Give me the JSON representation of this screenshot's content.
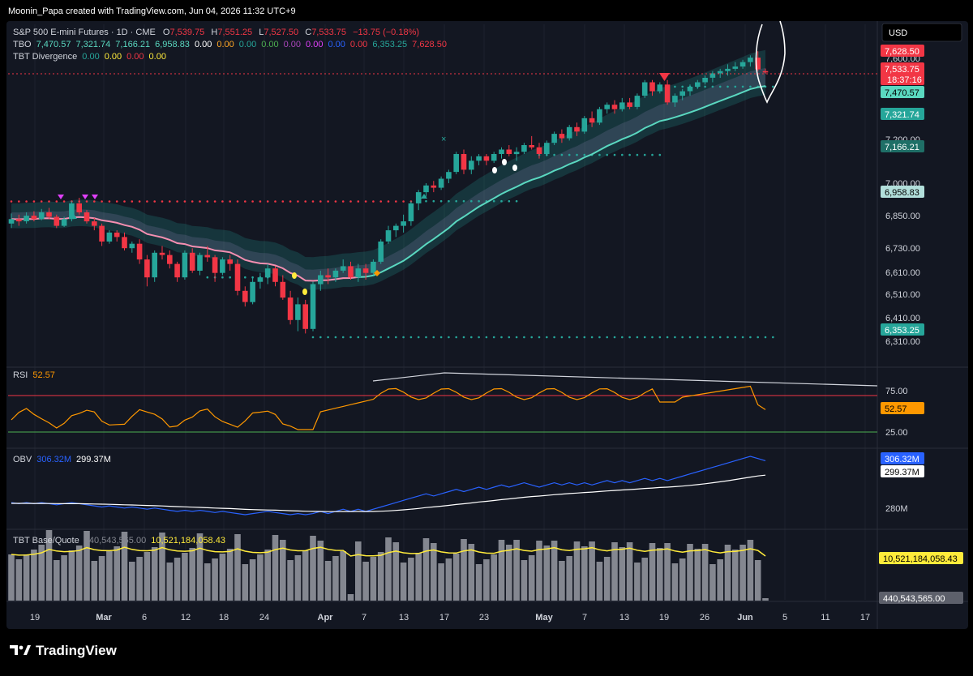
{
  "header": {
    "credit": "Moonin_Papa created with TradingView.com, Jun 04, 2026 11:32 UTC+9",
    "symbol": "S&P 500 E-mini Futures · 1D · CME",
    "ohlc": [
      {
        "k": "O",
        "v": "7,539.75"
      },
      {
        "k": "H",
        "v": "7,551.25"
      },
      {
        "k": "L",
        "v": "7,527.50"
      },
      {
        "k": "C",
        "v": "7,533.75"
      }
    ],
    "change": "−13.75 (−0.18%)",
    "tbo_name": "TBO",
    "tbo_values": [
      {
        "v": "7,470.57",
        "c": "#5ad8c0"
      },
      {
        "v": "7,321.74",
        "c": "#5ad8c0"
      },
      {
        "v": "7,166.21",
        "c": "#5ad8c0"
      },
      {
        "v": "6,958.83",
        "c": "#5ad8c0"
      },
      {
        "v": "0.00",
        "c": "#ffffff"
      },
      {
        "v": "0.00",
        "c": "#ffa726"
      },
      {
        "v": "0.00",
        "c": "#26a69a"
      },
      {
        "v": "0.00",
        "c": "#4caf50"
      },
      {
        "v": "0.00",
        "c": "#ab47bc"
      },
      {
        "v": "0.00",
        "c": "#e040fb"
      },
      {
        "v": "0.00",
        "c": "#2962ff"
      },
      {
        "v": "0.00",
        "c": "#f23645"
      },
      {
        "v": "6,353.25",
        "c": "#26a69a"
      },
      {
        "v": "7,628.50",
        "c": "#f23645"
      }
    ],
    "div_name": "TBT Divergence",
    "div_values": [
      {
        "v": "0.00",
        "c": "#26a69a"
      },
      {
        "v": "0.00",
        "c": "#ffeb3b"
      },
      {
        "v": "0.00",
        "c": "#f23645"
      },
      {
        "v": "0.00",
        "c": "#ffeb3b"
      }
    ],
    "currency": "USD"
  },
  "panels": {
    "rsi": {
      "name": "RSI",
      "value": "52.57"
    },
    "obv": {
      "name": "OBV",
      "v1": "306.32M",
      "v2": "299.37M"
    },
    "tbt": {
      "name": "TBT Base/Quote",
      "v1": "440,543,565.00",
      "v2": "10,521,184,058.43"
    }
  },
  "price_scale": {
    "ticks": [
      "7,200.00",
      "7,000.00",
      "6,850.00",
      "6,730.00",
      "6,610.00",
      "6,510.00",
      "6,410.00",
      "6,310.00"
    ],
    "top_tick": "7,600.00"
  },
  "price_labels": [
    {
      "text": "7,628.50",
      "bg": "#f23645",
      "fg": "#ffffff"
    },
    {
      "text": "7,533.75",
      "bg": "#f23645",
      "fg": "#ffffff",
      "sub": "18:37:16"
    },
    {
      "text": "7,470.57",
      "bg": "#5ad8c0",
      "fg": "#000000"
    },
    {
      "text": "7,321.74",
      "bg": "#26a69a",
      "fg": "#ffffff"
    },
    {
      "text": "7,166.21",
      "bg": "#1f6f67",
      "fg": "#ffffff"
    },
    {
      "text": "6,958.83",
      "bg": "#b2dfdb",
      "fg": "#000000"
    },
    {
      "text": "6,353.25",
      "bg": "#26a69a",
      "fg": "#ffffff"
    }
  ],
  "rsi_scale": {
    "upper": "75.00",
    "lower": "25.00",
    "label": "52.57"
  },
  "obv_scale": {
    "tick": "280M",
    "l1": "306.32M",
    "l2": "299.37M"
  },
  "tbt_scale": {
    "l1": "10,521,184,058.43",
    "l2": "440,543,565.00"
  },
  "x_axis": {
    "labels": [
      {
        "t": "19",
        "x": 43,
        "b": false
      },
      {
        "t": "Mar",
        "x": 128,
        "b": true
      },
      {
        "t": "6",
        "x": 178,
        "b": false
      },
      {
        "t": "12",
        "x": 229,
        "b": false
      },
      {
        "t": "18",
        "x": 276,
        "b": false
      },
      {
        "t": "24",
        "x": 326,
        "b": false
      },
      {
        "t": "Apr",
        "x": 401,
        "b": true
      },
      {
        "t": "7",
        "x": 449,
        "b": false
      },
      {
        "t": "13",
        "x": 498,
        "b": false
      },
      {
        "t": "17",
        "x": 548,
        "b": false
      },
      {
        "t": "23",
        "x": 597,
        "b": false
      },
      {
        "t": "May",
        "x": 671,
        "b": true
      },
      {
        "t": "7",
        "x": 721,
        "b": false
      },
      {
        "t": "13",
        "x": 770,
        "b": false
      },
      {
        "t": "19",
        "x": 819,
        "b": false
      },
      {
        "t": "26",
        "x": 869,
        "b": false
      },
      {
        "t": "Jun",
        "x": 919,
        "b": true
      },
      {
        "t": "5",
        "x": 968,
        "b": false
      },
      {
        "t": "11",
        "x": 1018,
        "b": false
      },
      {
        "t": "17",
        "x": 1067,
        "b": false
      }
    ]
  },
  "footer": {
    "brand": "TradingView"
  },
  "colors": {
    "up": "#26a69a",
    "down": "#f23645",
    "bg": "#000000",
    "pane": "#131722",
    "grid": "#1e222d",
    "text": "#d1d4dc",
    "rsi": "#ff9800",
    "obv": "#2962ff",
    "vol": "#848790",
    "volma": "#ffeb3b",
    "ema": "#5ad8c0",
    "pink": "#f48fb1"
  },
  "chart_data": {
    "type": "candlestick",
    "title": "S&P 500 E-mini Futures · 1D · CME",
    "x_start": "2026-02-16",
    "ohlc": [
      [
        6860,
        6905,
        6840,
        6880
      ],
      [
        6880,
        6900,
        6850,
        6870
      ],
      [
        6870,
        6910,
        6860,
        6895
      ],
      [
        6895,
        6915,
        6870,
        6880
      ],
      [
        6880,
        6925,
        6875,
        6910
      ],
      [
        6910,
        6930,
        6880,
        6890
      ],
      [
        6890,
        6900,
        6840,
        6850
      ],
      [
        6850,
        6890,
        6845,
        6880
      ],
      [
        6880,
        6960,
        6870,
        6950
      ],
      [
        6950,
        6975,
        6900,
        6910
      ],
      [
        6910,
        6920,
        6860,
        6870
      ],
      [
        6870,
        6885,
        6830,
        6850
      ],
      [
        6850,
        6860,
        6760,
        6780
      ],
      [
        6780,
        6830,
        6770,
        6820
      ],
      [
        6820,
        6830,
        6780,
        6800
      ],
      [
        6800,
        6820,
        6740,
        6750
      ],
      [
        6750,
        6780,
        6730,
        6770
      ],
      [
        6770,
        6790,
        6680,
        6700
      ],
      [
        6700,
        6720,
        6580,
        6620
      ],
      [
        6620,
        6740,
        6600,
        6730
      ],
      [
        6730,
        6760,
        6700,
        6720
      ],
      [
        6720,
        6740,
        6660,
        6680
      ],
      [
        6680,
        6690,
        6600,
        6620
      ],
      [
        6620,
        6740,
        6610,
        6730
      ],
      [
        6730,
        6750,
        6640,
        6650
      ],
      [
        6650,
        6730,
        6630,
        6720
      ],
      [
        6720,
        6760,
        6690,
        6710
      ],
      [
        6710,
        6720,
        6600,
        6640
      ],
      [
        6640,
        6710,
        6630,
        6700
      ],
      [
        6700,
        6720,
        6650,
        6680
      ],
      [
        6680,
        6700,
        6540,
        6560
      ],
      [
        6560,
        6580,
        6490,
        6510
      ],
      [
        6510,
        6620,
        6500,
        6600
      ],
      [
        6600,
        6640,
        6570,
        6620
      ],
      [
        6620,
        6680,
        6590,
        6660
      ],
      [
        6660,
        6670,
        6580,
        6600
      ],
      [
        6600,
        6630,
        6520,
        6530
      ],
      [
        6530,
        6560,
        6410,
        6430
      ],
      [
        6430,
        6530,
        6380,
        6500
      ],
      [
        6500,
        6520,
        6370,
        6390
      ],
      [
        6390,
        6600,
        6380,
        6590
      ],
      [
        6590,
        6650,
        6560,
        6630
      ],
      [
        6630,
        6660,
        6590,
        6620
      ],
      [
        6620,
        6660,
        6600,
        6650
      ],
      [
        6650,
        6700,
        6640,
        6670
      ],
      [
        6670,
        6690,
        6610,
        6620
      ],
      [
        6620,
        6680,
        6600,
        6660
      ],
      [
        6660,
        6680,
        6610,
        6640
      ],
      [
        6640,
        6700,
        6630,
        6690
      ],
      [
        6690,
        6790,
        6680,
        6780
      ],
      [
        6780,
        6850,
        6770,
        6830
      ],
      [
        6830,
        6860,
        6800,
        6850
      ],
      [
        6850,
        6900,
        6820,
        6870
      ],
      [
        6870,
        6960,
        6850,
        6950
      ],
      [
        6950,
        7010,
        6920,
        7000
      ],
      [
        7000,
        7040,
        6980,
        7030
      ],
      [
        7030,
        7050,
        7000,
        7020
      ],
      [
        7020,
        7070,
        7010,
        7060
      ],
      [
        7060,
        7100,
        7040,
        7090
      ],
      [
        7090,
        7180,
        7080,
        7170
      ],
      [
        7170,
        7190,
        7080,
        7100
      ],
      [
        7100,
        7160,
        7080,
        7140
      ],
      [
        7140,
        7170,
        7120,
        7160
      ],
      [
        7160,
        7170,
        7120,
        7140
      ],
      [
        7140,
        7180,
        7130,
        7170
      ],
      [
        7170,
        7200,
        7150,
        7190
      ],
      [
        7190,
        7210,
        7160,
        7170
      ],
      [
        7170,
        7200,
        7140,
        7180
      ],
      [
        7180,
        7220,
        7170,
        7210
      ],
      [
        7210,
        7250,
        7190,
        7200
      ],
      [
        7200,
        7220,
        7150,
        7170
      ],
      [
        7170,
        7230,
        7160,
        7220
      ],
      [
        7220,
        7270,
        7210,
        7260
      ],
      [
        7260,
        7280,
        7220,
        7240
      ],
      [
        7240,
        7300,
        7230,
        7290
      ],
      [
        7290,
        7310,
        7250,
        7270
      ],
      [
        7270,
        7340,
        7260,
        7330
      ],
      [
        7330,
        7360,
        7290,
        7310
      ],
      [
        7310,
        7380,
        7300,
        7370
      ],
      [
        7370,
        7400,
        7350,
        7390
      ],
      [
        7390,
        7410,
        7350,
        7370
      ],
      [
        7370,
        7420,
        7360,
        7400
      ],
      [
        7400,
        7420,
        7370,
        7380
      ],
      [
        7380,
        7440,
        7370,
        7430
      ],
      [
        7430,
        7500,
        7420,
        7490
      ],
      [
        7490,
        7500,
        7430,
        7450
      ],
      [
        7450,
        7490,
        7440,
        7480
      ],
      [
        7480,
        7500,
        7390,
        7400
      ],
      [
        7400,
        7440,
        7380,
        7430
      ],
      [
        7430,
        7460,
        7410,
        7450
      ],
      [
        7450,
        7480,
        7430,
        7470
      ],
      [
        7470,
        7500,
        7460,
        7490
      ],
      [
        7490,
        7520,
        7480,
        7510
      ],
      [
        7510,
        7540,
        7490,
        7530
      ],
      [
        7530,
        7550,
        7510,
        7540
      ],
      [
        7540,
        7570,
        7520,
        7550
      ],
      [
        7550,
        7580,
        7540,
        7560
      ],
      [
        7560,
        7590,
        7550,
        7580
      ],
      [
        7580,
        7610,
        7560,
        7600
      ],
      [
        7600,
        7628.5,
        7540,
        7547.5
      ],
      [
        7539.75,
        7551.25,
        7527.5,
        7533.75
      ]
    ],
    "ylim": [
      6310,
      7640
    ]
  }
}
